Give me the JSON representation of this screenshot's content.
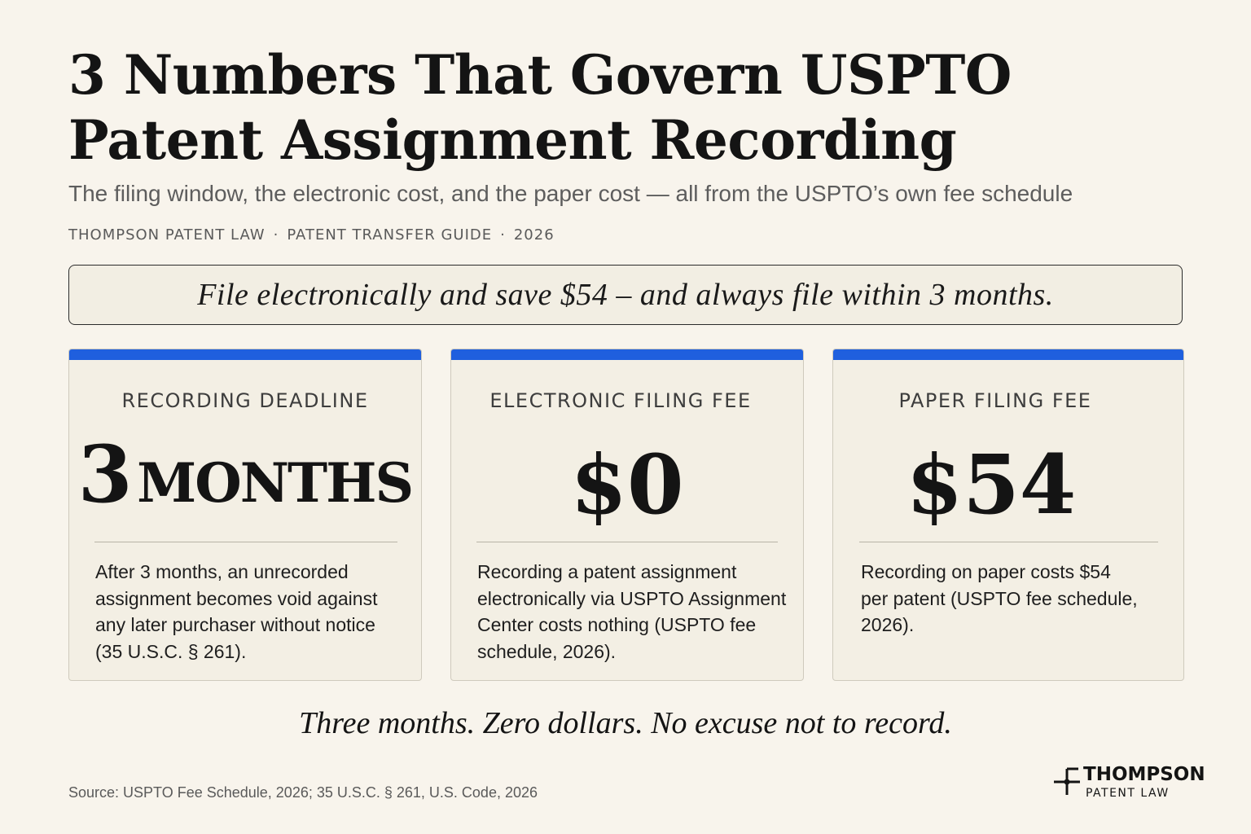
{
  "header": {
    "title": "3 Numbers That Govern USPTO Patent Assignment Recording",
    "subtitle": "The filing window, the electronic cost, and the paper cost — all from the USPTO’s own fee schedule",
    "byline": [
      "THOMPSON PATENT LAW",
      "PATENT TRANSFER GUIDE",
      "2026"
    ],
    "byline_separator": "·"
  },
  "callout": {
    "text": "File electronically and save $54 – and always file within 3 months."
  },
  "cards": [
    {
      "label": "RECORDING DEADLINE",
      "value_number": "3",
      "value_unit": "MONTHS",
      "description": "After 3 months, an unrecorded assignment becomes void against any later purchaser without notice (35 U.S.C. § 261)."
    },
    {
      "label": "ELECTRONIC FILING FEE",
      "value": "$0",
      "description": "Recording a patent assignment electronically via USPTO Assignment Center costs nothing (USPTO fee schedule, 2026)."
    },
    {
      "label": "PAPER FILING FEE",
      "value": "$54",
      "description": "Recording on paper costs $54 per patent (USPTO fee schedule, 2026)."
    }
  ],
  "tagline": "Three months. Zero dollars. No excuse not to record.",
  "source": "Source: USPTO Fee Schedule, 2026; 35 U.S.C. § 261, U.S. Code, 2026",
  "logo": {
    "name": "THOMPSON",
    "sub": "PATENT LAW",
    "icon": "crosshair-mark-icon"
  },
  "colors": {
    "background": "#f8f4ec",
    "accent": "#1f5fde",
    "card_background": "#f3efe4",
    "text": "#141414"
  }
}
